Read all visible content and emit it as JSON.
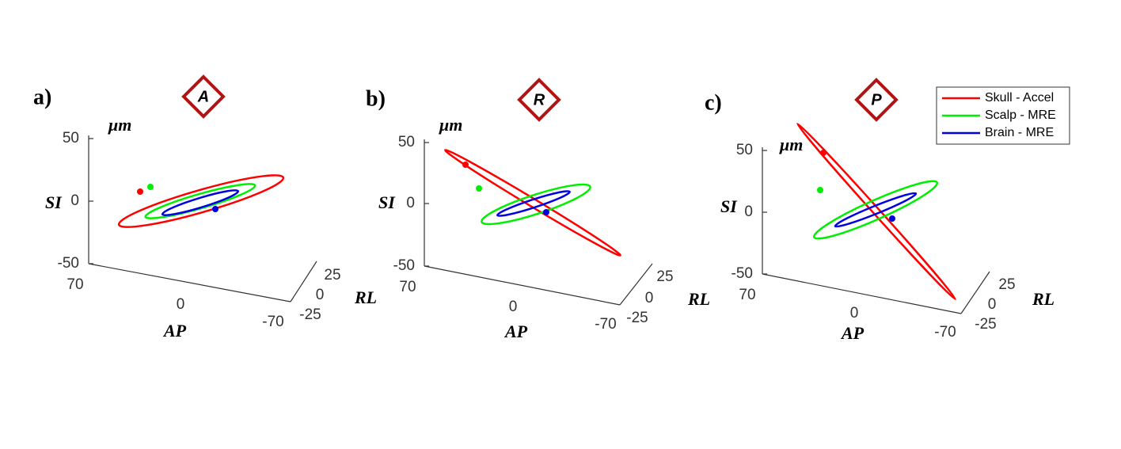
{
  "figure": {
    "panels": [
      {
        "label": "a)",
        "direction": "A",
        "unit": "μm",
        "y_label": "SI",
        "y_ticks": [
          50,
          0,
          -50
        ],
        "x_label": "AP",
        "x_ticks": [
          70,
          0,
          -70
        ],
        "z_label": "RL",
        "z_ticks": [
          25,
          0,
          -25
        ]
      },
      {
        "label": "b)",
        "direction": "R",
        "unit": "μm",
        "y_label": "SI",
        "y_ticks": [
          50,
          0,
          -50
        ],
        "x_label": "AP",
        "x_ticks": [
          70,
          0,
          -70
        ],
        "z_label": "RL",
        "z_ticks": [
          25,
          0,
          -25
        ]
      },
      {
        "label": "c)",
        "direction": "P",
        "unit": "μm",
        "y_label": "SI",
        "y_ticks": [
          50,
          0,
          -50
        ],
        "x_label": "AP",
        "x_ticks": [
          70,
          0,
          -70
        ],
        "z_label": "RL",
        "z_ticks": [
          25,
          0,
          -25
        ]
      }
    ],
    "legend": [
      {
        "name": "Skull - Accel",
        "color": "#ff0000"
      },
      {
        "name": "Scalp - MRE",
        "color": "#00ee00"
      },
      {
        "name": "Brain - MRE",
        "color": "#0000e0"
      }
    ]
  }
}
